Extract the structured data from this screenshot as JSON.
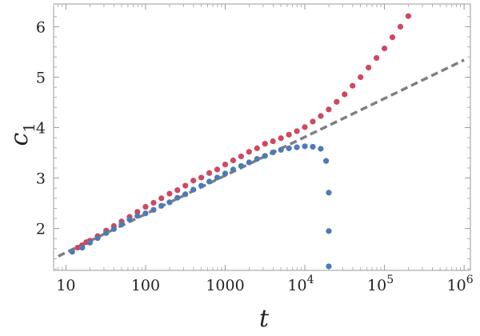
{
  "chart_data": {
    "type": "scatter",
    "title": "",
    "xlabel": "t",
    "ylabel": "c",
    "ylabel_subscript": "1",
    "x_scale": "log",
    "xlim": [
      7,
      1200000
    ],
    "ylim": [
      1.17,
      6.45
    ],
    "x_ticks": [
      {
        "value": 10,
        "label": "10"
      },
      {
        "value": 100,
        "label": "100"
      },
      {
        "value": 1000,
        "label": "1000"
      },
      {
        "value": 10000,
        "label": "10",
        "exponent": "4"
      },
      {
        "value": 100000,
        "label": "10",
        "exponent": "5"
      },
      {
        "value": 1000000,
        "label": "10",
        "exponent": "6"
      }
    ],
    "y_ticks": [
      {
        "value": 2,
        "label": "2"
      },
      {
        "value": 3,
        "label": "3"
      },
      {
        "value": 4,
        "label": "4"
      },
      {
        "value": 5,
        "label": "5"
      },
      {
        "value": 6,
        "label": "6"
      }
    ],
    "series": [
      {
        "color": "#d1475f",
        "x": [
          14,
          16,
          18,
          20,
          25,
          32,
          40,
          50,
          63,
          79,
          100,
          126,
          158,
          200,
          251,
          316,
          398,
          501,
          631,
          794,
          1000,
          1259,
          1585,
          1995,
          2512,
          3162,
          3981,
          5012,
          6310,
          7943,
          10000,
          12589,
          15849,
          19953,
          25119,
          31623,
          39811,
          50119,
          63096,
          79433,
          100000,
          125893,
          158489,
          199526
        ],
        "y": [
          1.62,
          1.67,
          1.73,
          1.76,
          1.85,
          1.96,
          2.05,
          2.14,
          2.23,
          2.33,
          2.43,
          2.51,
          2.6,
          2.69,
          2.76,
          2.85,
          2.95,
          3.01,
          3.1,
          3.17,
          3.27,
          3.35,
          3.43,
          3.52,
          3.59,
          3.68,
          3.73,
          3.79,
          3.86,
          3.93,
          4.01,
          4.12,
          4.23,
          4.36,
          4.51,
          4.66,
          4.83,
          5.0,
          5.19,
          5.38,
          5.57,
          5.79,
          6.0,
          6.21
        ]
      },
      {
        "color": "#4c7bb5",
        "x": [
          12,
          16,
          20,
          25,
          32,
          40,
          50,
          63,
          79,
          100,
          126,
          158,
          200,
          251,
          316,
          398,
          501,
          631,
          794,
          1000,
          1259,
          1585,
          1995,
          2512,
          3162,
          3981,
          5012,
          6310,
          7943,
          10000,
          12589,
          15849,
          18500,
          20000,
          20000,
          20000
        ],
        "y": [
          1.54,
          1.62,
          1.72,
          1.81,
          1.91,
          1.99,
          2.08,
          2.18,
          2.25,
          2.3,
          2.37,
          2.45,
          2.52,
          2.61,
          2.68,
          2.77,
          2.85,
          2.93,
          3.01,
          3.09,
          3.17,
          3.24,
          3.31,
          3.38,
          3.44,
          3.51,
          3.56,
          3.59,
          3.61,
          3.63,
          3.62,
          3.58,
          3.34,
          2.71,
          1.95,
          1.25
        ]
      }
    ],
    "reference_line": {
      "style": "dashed",
      "color": "#808080",
      "x": [
        8,
        1000000
      ],
      "y": [
        1.45,
        5.34
      ]
    },
    "grid": false,
    "legend": "none"
  }
}
